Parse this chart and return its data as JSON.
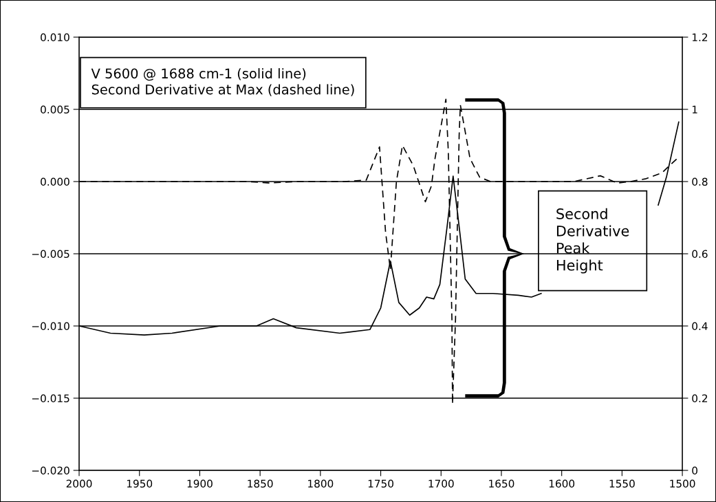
{
  "chart_data": {
    "type": "line",
    "xlim": [
      2000,
      1500
    ],
    "xticks": [
      2000,
      1950,
      1900,
      1850,
      1800,
      1750,
      1700,
      1650,
      1600,
      1550,
      1500
    ],
    "ylim": [
      -0.02,
      0.01
    ],
    "yticks": [
      {
        "value": -0.02,
        "label": "−0.020"
      },
      {
        "value": -0.015,
        "label": "−0.015"
      },
      {
        "value": -0.01,
        "label": "−0.010"
      },
      {
        "value": -0.005,
        "label": "−0.005"
      },
      {
        "value": 0,
        "label": "0.000"
      },
      {
        "value": 0.005,
        "label": "0.005"
      },
      {
        "value": 0.01,
        "label": "0.010"
      }
    ],
    "y2lim": [
      0,
      1.2
    ],
    "y2ticks": [
      0,
      0.2,
      0.4,
      0.6,
      0.8,
      1,
      1.2
    ],
    "grid": "y",
    "series": [
      {
        "color": "#000000",
        "axis": "y2",
        "line_style": "solid",
        "x": [
          2000,
          1974,
          1946,
          1923,
          1883,
          1853,
          1839,
          1820,
          1784,
          1759,
          1750,
          1742,
          1735,
          1726,
          1718,
          1712,
          1706,
          1701,
          1695,
          1690,
          1685,
          1680,
          1671,
          1657,
          1636,
          1625,
          1617,
          1570,
          1520,
          1513,
          1503
        ],
        "values": [
          0.4,
          0.38,
          0.375,
          0.38,
          0.4,
          0.4,
          0.42,
          0.395,
          0.38,
          0.39,
          0.45,
          0.58,
          0.465,
          0.43,
          0.45,
          0.48,
          0.475,
          0.515,
          0.675,
          0.815,
          0.675,
          0.53,
          0.49,
          0.49,
          0.485,
          0.48,
          0.49,
          null,
          0.735,
          0.815,
          0.965
        ]
      },
      {
        "color": "#000000",
        "line_style": "dashed",
        "x": [
          2000,
          1950,
          1900,
          1860,
          1842,
          1820,
          1780,
          1762,
          1751,
          1746,
          1742,
          1737,
          1732,
          1723,
          1713,
          1708,
          1705,
          1699,
          1696,
          1694,
          1691,
          1690.5,
          1688,
          1686.5,
          1685,
          1684,
          1679,
          1676,
          1668,
          1659,
          1620,
          1590,
          1568,
          1554,
          1543,
          1530,
          1517,
          1503
        ],
        "values": [
          0.0,
          0.0,
          0.0,
          0.0,
          -0.0001,
          0.0,
          0.0,
          0.0001,
          0.0024,
          -0.0035,
          -0.0061,
          0.0,
          0.0025,
          0.0011,
          -0.0014,
          -0.0003,
          0.0016,
          0.0043,
          0.0057,
          0.0021,
          -0.0095,
          -0.0154,
          -0.0095,
          -0.0031,
          0.0032,
          0.0053,
          0.003,
          0.0016,
          0.0003,
          0.0,
          0.0,
          0.0,
          0.0004,
          -0.0001,
          0.0,
          0.0002,
          0.0006,
          0.0017
        ]
      }
    ],
    "annotations": [
      "V 5600 @ 1688 cm-1 (solid line)\nSecond Derivative at Max (dashed line)",
      "Second\nDerivative\nPeak\nHeight"
    ]
  }
}
